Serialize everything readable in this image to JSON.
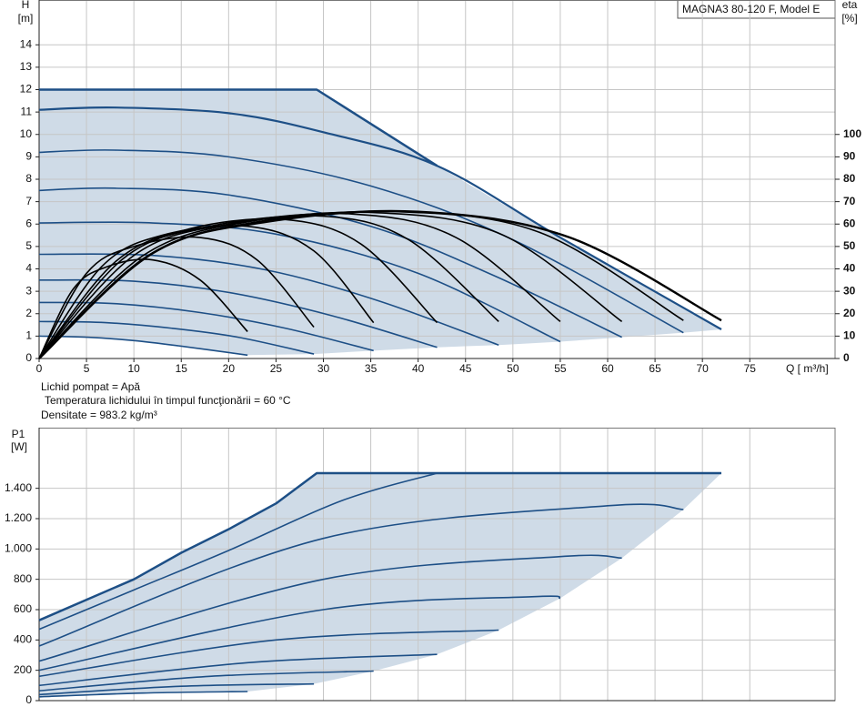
{
  "chart_data": [
    {
      "type": "line",
      "title": "MAGNA3 80-120 F, Model E",
      "x_label": "Q [ m³/h]",
      "y_label": "H",
      "y_unit": "[m]",
      "y2_label": "eta",
      "y2_unit": "[%]",
      "notes": [
        "Lichid pompat = Apă",
        "Temperatura lichidului în timpul funcţionării = 60  °C",
        "Densitate = 983.2  kg/m³"
      ],
      "xlim": [
        0,
        84
      ],
      "xticks": [
        0,
        5,
        10,
        15,
        20,
        25,
        30,
        35,
        40,
        45,
        50,
        55,
        60,
        65,
        70,
        75
      ],
      "ylim": [
        0,
        16
      ],
      "yticks": [
        0,
        1,
        2,
        3,
        4,
        5,
        6,
        7,
        8,
        9,
        10,
        11,
        12,
        13,
        14
      ],
      "y2lim": [
        0,
        160
      ],
      "y2ticks": [
        0,
        10,
        20,
        30,
        40,
        50,
        60,
        70,
        80,
        90,
        100
      ],
      "grid": true,
      "fill": "#cfdbe7",
      "series": [
        {
          "color": "#1d4f86",
          "width": 2.5,
          "interpolation": "linear",
          "x": [
            0,
            29.3,
            42
          ],
          "values": [
            12,
            12,
            8.6
          ]
        },
        {
          "color": "#1d4f86",
          "width": 1.6,
          "x": [
            0,
            5,
            10,
            15,
            22
          ],
          "values": [
            1,
            0.95,
            0.8,
            0.55,
            0.15
          ]
        },
        {
          "color": "#1d4f86",
          "width": 1.6,
          "x": [
            0,
            7,
            14,
            21,
            29
          ],
          "values": [
            1.65,
            1.6,
            1.35,
            0.95,
            0.2
          ]
        },
        {
          "color": "#1d4f86",
          "width": 1.6,
          "x": [
            0,
            8,
            17,
            26,
            35.3
          ],
          "values": [
            2.5,
            2.45,
            2.05,
            1.35,
            0.35
          ]
        },
        {
          "color": "#1d4f86",
          "width": 1.6,
          "x": [
            0,
            10,
            20,
            31,
            42
          ],
          "values": [
            3.5,
            3.45,
            2.95,
            1.9,
            0.5
          ]
        },
        {
          "color": "#1d4f86",
          "width": 1.6,
          "x": [
            0,
            12,
            24,
            36,
            48.5
          ],
          "values": [
            4.65,
            4.6,
            3.95,
            2.55,
            0.6
          ]
        },
        {
          "color": "#1d4f86",
          "width": 1.6,
          "x": [
            0,
            12,
            25,
            40,
            55
          ],
          "values": [
            6.05,
            6.05,
            5.55,
            3.8,
            0.75
          ]
        },
        {
          "color": "#1d4f86",
          "width": 1.6,
          "x": [
            0,
            8,
            20,
            35,
            48,
            61.5
          ],
          "values": [
            7.5,
            7.6,
            7.3,
            5.9,
            3.7,
            0.95
          ]
        },
        {
          "color": "#1d4f86",
          "width": 1.6,
          "x": [
            0,
            8,
            20,
            35,
            50,
            68
          ],
          "values": [
            9.2,
            9.3,
            9.0,
            7.7,
            5.3,
            1.15
          ]
        },
        {
          "color": "#1d4f86",
          "width": 2.2,
          "x": [
            0,
            8,
            20,
            30,
            42,
            55,
            72
          ],
          "values": [
            11.1,
            11.2,
            10.95,
            10.1,
            8.6,
            5.4,
            1.3
          ]
        },
        {
          "color": "#000000",
          "width": 1.6,
          "axis": "y2",
          "x": [
            0,
            3.6,
            7.2,
            12,
            17,
            22
          ],
          "values": [
            0,
            31,
            41,
            44,
            35,
            12
          ]
        },
        {
          "color": "#000000",
          "width": 1.6,
          "axis": "y2",
          "x": [
            0,
            5,
            10,
            17,
            23,
            29
          ],
          "values": [
            0,
            38,
            50,
            54,
            44,
            14
          ]
        },
        {
          "color": "#000000",
          "width": 1.6,
          "axis": "y2",
          "x": [
            0,
            6.6,
            13,
            22,
            29,
            35.3
          ],
          "values": [
            0,
            41,
            55,
            59,
            48,
            16
          ]
        },
        {
          "color": "#000000",
          "width": 1.6,
          "axis": "y2",
          "x": [
            0,
            8,
            16,
            26,
            34,
            42
          ],
          "values": [
            0,
            43,
            58,
            62,
            51,
            16
          ]
        },
        {
          "color": "#000000",
          "width": 1.6,
          "axis": "y2",
          "x": [
            0,
            9,
            18,
            30,
            39,
            48.5
          ],
          "values": [
            0,
            45,
            59,
            63.5,
            53,
            16.5
          ]
        },
        {
          "color": "#000000",
          "width": 1.6,
          "axis": "y2",
          "x": [
            0,
            10,
            20,
            33,
            44,
            55
          ],
          "values": [
            0,
            46,
            60,
            64.5,
            54,
            16.5
          ]
        },
        {
          "color": "#000000",
          "width": 1.6,
          "axis": "y2",
          "x": [
            0,
            11,
            22,
            36,
            49,
            61.5
          ],
          "values": [
            0,
            46,
            61,
            65,
            55,
            16.5
          ]
        },
        {
          "color": "#000000",
          "width": 1.6,
          "axis": "y2",
          "x": [
            0,
            11.5,
            23,
            38,
            53,
            68
          ],
          "values": [
            0,
            46,
            61,
            65.5,
            56,
            17
          ]
        },
        {
          "color": "#000000",
          "width": 2.4,
          "axis": "y2",
          "x": [
            0,
            12,
            24,
            40,
            56,
            72
          ],
          "values": [
            0,
            47,
            61,
            65.5,
            54,
            17
          ]
        }
      ]
    },
    {
      "type": "line",
      "y_label": "P1",
      "y_unit": "[W]",
      "xlim": [
        0,
        84
      ],
      "ylim": [
        0,
        1800
      ],
      "yticks": [
        0,
        200,
        400,
        600,
        800,
        {
          "value": 1000,
          "label": "1.000"
        },
        {
          "value": 1200,
          "label": "1.200"
        },
        {
          "value": 1400,
          "label": "1.400"
        }
      ],
      "grid": true,
      "fill": "#cfdbe7",
      "series": [
        {
          "color": "#1d4f86",
          "width": 2.5,
          "interpolation": "linear",
          "x": [
            0,
            10,
            15,
            20,
            25,
            29.3,
            72
          ],
          "values": [
            530,
            800,
            975,
            1130,
            1300,
            1500,
            1500
          ]
        },
        {
          "color": "#1d4f86",
          "width": 1.6,
          "x": [
            0,
            11,
            22
          ],
          "values": [
            25,
            50,
            60
          ]
        },
        {
          "color": "#1d4f86",
          "width": 1.6,
          "x": [
            0,
            15,
            29
          ],
          "values": [
            40,
            95,
            110
          ]
        },
        {
          "color": "#1d4f86",
          "width": 1.6,
          "x": [
            0,
            18,
            35.3
          ],
          "values": [
            65,
            160,
            195
          ]
        },
        {
          "color": "#1d4f86",
          "width": 1.6,
          "x": [
            0,
            22,
            42
          ],
          "values": [
            100,
            250,
            305
          ]
        },
        {
          "color": "#1d4f86",
          "width": 1.6,
          "x": [
            0,
            25,
            48.5
          ],
          "values": [
            160,
            400,
            465
          ]
        },
        {
          "color": "#1d4f86",
          "width": 1.6,
          "x": [
            0,
            30,
            52,
            55
          ],
          "values": [
            200,
            600,
            685,
            675
          ]
        },
        {
          "color": "#1d4f86",
          "width": 1.6,
          "x": [
            0,
            30,
            55,
            61.5
          ],
          "values": [
            260,
            800,
            950,
            940
          ]
        },
        {
          "color": "#1d4f86",
          "width": 1.6,
          "x": [
            0,
            30,
            60,
            68
          ],
          "values": [
            360,
            1070,
            1285,
            1260
          ]
        },
        {
          "color": "#1d4f86",
          "width": 1.6,
          "x": [
            0,
            10,
            20,
            32,
            42
          ],
          "values": [
            470,
            730,
            990,
            1320,
            1500
          ]
        }
      ]
    }
  ]
}
